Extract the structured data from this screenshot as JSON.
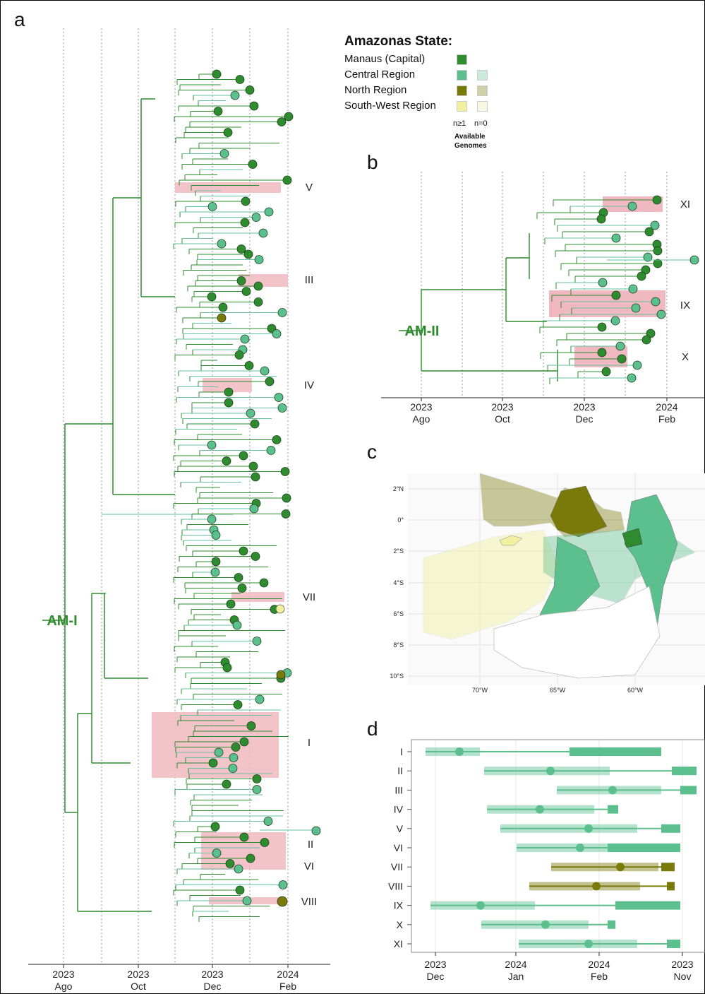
{
  "panels": {
    "a": "a",
    "b": "b",
    "c": "c",
    "d": "d"
  },
  "legend": {
    "title": "Amazonas State:",
    "items": [
      {
        "label": "Manaus (Capital)",
        "color_n1": "#2e8b2e",
        "color_n0": null
      },
      {
        "label": "Central Region",
        "color_n1": "#5cbf8e",
        "color_n0": "#c9eadb"
      },
      {
        "label": "North Region",
        "color_n1": "#7a7a0a",
        "color_n0": "#cfcfa8"
      },
      {
        "label": "South-West Region",
        "color_n1": "#f0f0a0",
        "color_n0": "#f7f7e4"
      }
    ],
    "n1_label": "n≥1",
    "n0_label": "n=0",
    "footer_line1": "Available",
    "footer_line2": "Genomes"
  },
  "colors": {
    "manaus": "#2e8b2e",
    "central": "#5cbf8e",
    "north": "#7a7a0a",
    "southwest": "#f0f0a0",
    "highlight": "#f0b8c0",
    "tree_green": "#2e8b2e",
    "tree_teal": "#66c2a0"
  },
  "chart_data": [
    {
      "type": "tree",
      "panel": "a",
      "lineage_label": "AM-I",
      "x_ticks": [
        {
          "year": "2023",
          "month": "Ago"
        },
        {
          "year": "2023",
          "month": "Oct"
        },
        {
          "year": "2023",
          "month": "Dec"
        },
        {
          "year": "2024",
          "month": "Feb"
        }
      ],
      "clusters": [
        "V",
        "III",
        "IV",
        "VII",
        "I",
        "II",
        "VI",
        "VIII"
      ]
    },
    {
      "type": "tree",
      "panel": "b",
      "lineage_label": "AM-II",
      "x_ticks": [
        {
          "year": "2023",
          "month": "Ago"
        },
        {
          "year": "2023",
          "month": "Oct"
        },
        {
          "year": "2023",
          "month": "Dec"
        },
        {
          "year": "2024",
          "month": "Feb"
        }
      ],
      "clusters": [
        "XI",
        "IX",
        "X"
      ]
    },
    {
      "type": "map",
      "panel": "c",
      "lat_labels": [
        "2°N",
        "0°",
        "2°S",
        "4°S",
        "6°S",
        "8°S",
        "10°S"
      ],
      "lon_labels": [
        "70°W",
        "65°W",
        "60°W"
      ]
    },
    {
      "type": "interval",
      "panel": "d",
      "categories": [
        "I",
        "II",
        "III",
        "IV",
        "V",
        "VI",
        "VII",
        "VIII",
        "IX",
        "X",
        "XI"
      ],
      "x_ticks": [
        {
          "year": "2023",
          "month": "Dec"
        },
        {
          "year": "2024",
          "month": "Jan"
        },
        {
          "year": "2024",
          "month": "Feb"
        },
        {
          "year": "2023",
          "month": "Nov"
        }
      ]
    }
  ]
}
